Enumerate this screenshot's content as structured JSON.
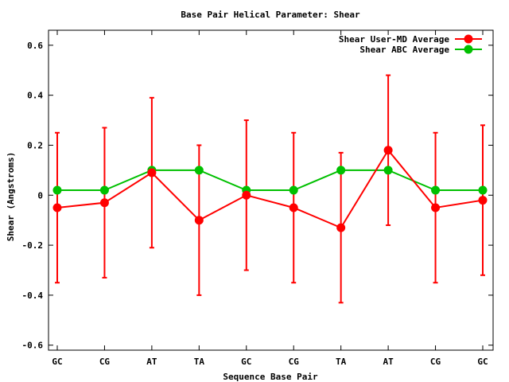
{
  "chart_data": {
    "type": "line",
    "title": "Base Pair Helical Parameter: Shear",
    "xlabel": "Sequence Base Pair",
    "ylabel": "Shear (Angstroms)",
    "categories": [
      "GC",
      "CG",
      "AT",
      "TA",
      "GC",
      "CG",
      "TA",
      "AT",
      "CG",
      "GC"
    ],
    "ylim": [
      -0.62,
      0.66
    ],
    "yticks": [
      -0.6,
      -0.4,
      -0.2,
      0,
      0.2,
      0.4,
      0.6
    ],
    "ytick_labels": [
      "-0.6",
      "-0.4",
      "-0.2",
      "0",
      "0.2",
      "0.4",
      "0.6"
    ],
    "legend_position": "top-right",
    "grid": false,
    "series": [
      {
        "name": "Shear User-MD Average",
        "color": "#ff0000",
        "values": [
          -0.05,
          -0.03,
          0.09,
          -0.1,
          0.0,
          -0.05,
          -0.13,
          0.18,
          -0.05,
          -0.02
        ],
        "error_low": [
          -0.35,
          -0.33,
          -0.21,
          -0.4,
          -0.3,
          -0.35,
          -0.43,
          -0.12,
          -0.35,
          -0.32
        ],
        "error_high": [
          0.25,
          0.27,
          0.39,
          0.2,
          0.3,
          0.25,
          0.17,
          0.48,
          0.25,
          0.28
        ]
      },
      {
        "name": "Shear ABC Average",
        "color": "#00c000",
        "values": [
          0.02,
          0.02,
          0.1,
          0.1,
          0.02,
          0.02,
          0.1,
          0.1,
          0.02,
          0.02
        ]
      }
    ]
  }
}
